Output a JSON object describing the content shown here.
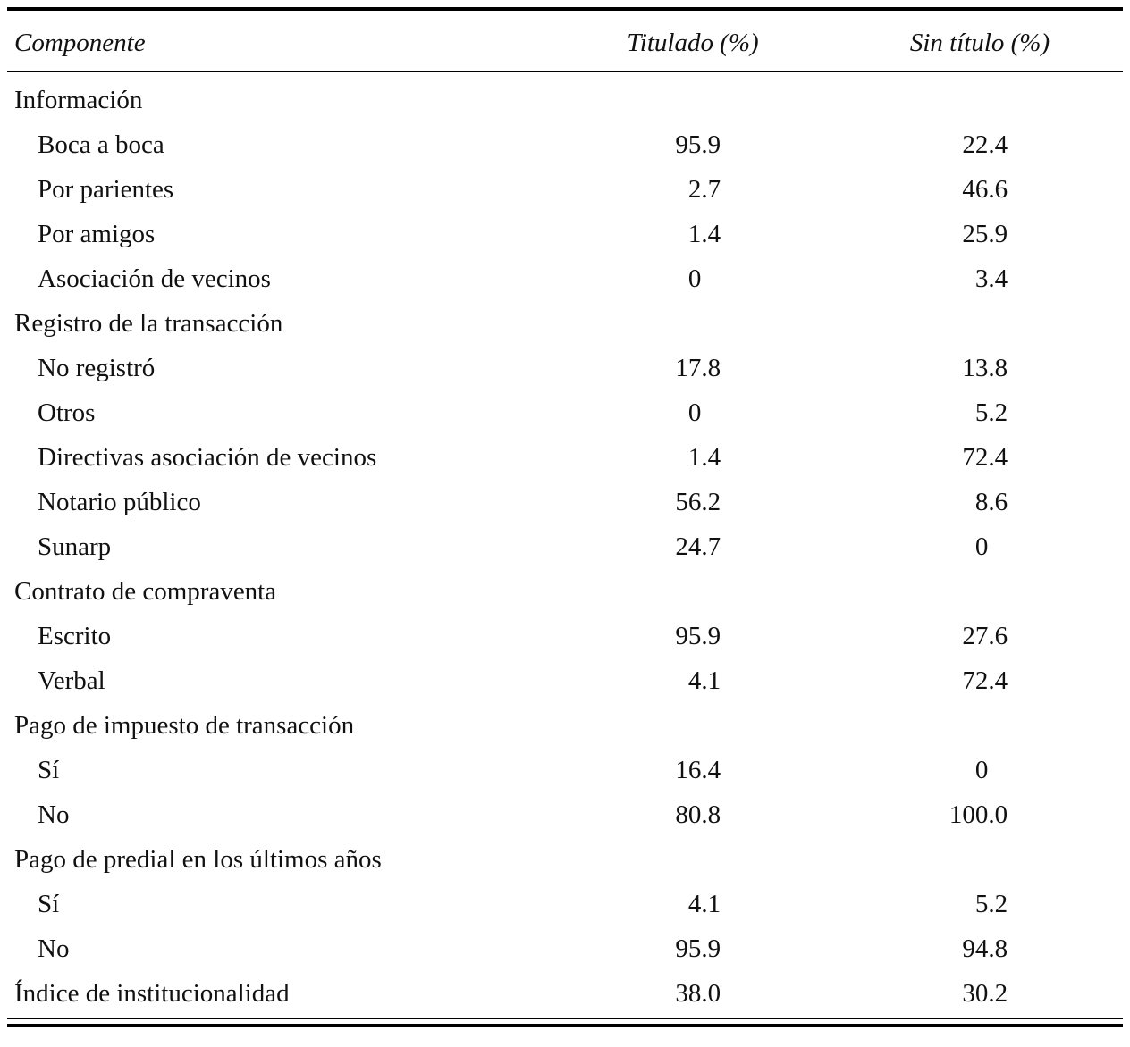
{
  "page": {
    "background": "#ffffff",
    "text_color": "#111111",
    "rule_color": "#000000"
  },
  "table": {
    "columns": [
      {
        "label": "Componente"
      },
      {
        "label": "Titulado (%)"
      },
      {
        "label": "Sin título (%)"
      }
    ],
    "rows": [
      {
        "indent": 0,
        "label": "Información",
        "values": [
          "",
          ""
        ]
      },
      {
        "indent": 1,
        "label": "Boca a boca",
        "values": [
          "95.9",
          "22.4"
        ]
      },
      {
        "indent": 1,
        "label": "Por parientes",
        "values": [
          "2.7",
          "46.6"
        ]
      },
      {
        "indent": 1,
        "label": "Por amigos",
        "values": [
          "1.4",
          "25.9"
        ]
      },
      {
        "indent": 1,
        "label": "Asociación de vecinos",
        "values": [
          "0",
          "3.4"
        ]
      },
      {
        "indent": 0,
        "label": "Registro de la transacción",
        "values": [
          "",
          ""
        ]
      },
      {
        "indent": 1,
        "label": "No registró",
        "values": [
          "17.8",
          "13.8"
        ]
      },
      {
        "indent": 1,
        "label": "Otros",
        "values": [
          "0",
          "5.2"
        ]
      },
      {
        "indent": 1,
        "label": "Directivas asociación de vecinos",
        "values": [
          "1.4",
          "72.4"
        ]
      },
      {
        "indent": 1,
        "label": "Notario público",
        "values": [
          "56.2",
          "8.6"
        ]
      },
      {
        "indent": 1,
        "label": "Sunarp",
        "values": [
          "24.7",
          "0"
        ]
      },
      {
        "indent": 0,
        "label": "Contrato de compraventa",
        "values": [
          "",
          ""
        ]
      },
      {
        "indent": 1,
        "label": "Escrito",
        "values": [
          "95.9",
          "27.6"
        ]
      },
      {
        "indent": 1,
        "label": "Verbal",
        "values": [
          "4.1",
          "72.4"
        ]
      },
      {
        "indent": 0,
        "label": "Pago de impuesto de transacción",
        "values": [
          "",
          ""
        ]
      },
      {
        "indent": 1,
        "label": "Sí",
        "values": [
          "16.4",
          "0"
        ]
      },
      {
        "indent": 1,
        "label": "No",
        "values": [
          "80.8",
          "100.0"
        ]
      },
      {
        "indent": 0,
        "label": "Pago de predial en los últimos años",
        "values": [
          "",
          ""
        ]
      },
      {
        "indent": 1,
        "label": "Sí",
        "values": [
          "4.1",
          "5.2"
        ]
      },
      {
        "indent": 1,
        "label": "No",
        "values": [
          "95.9",
          "94.8"
        ]
      },
      {
        "indent": 0,
        "label": "Índice de institucionalidad",
        "values": [
          "38.0",
          "30.2"
        ]
      }
    ]
  },
  "chart_data": {
    "type": "table",
    "title": "",
    "columns": [
      "Componente",
      "Titulado (%)",
      "Sin título (%)"
    ],
    "groups": [
      {
        "group": "Información",
        "rows": [
          [
            "Boca a boca",
            95.9,
            22.4
          ],
          [
            "Por parientes",
            2.7,
            46.6
          ],
          [
            "Por amigos",
            1.4,
            25.9
          ],
          [
            "Asociación de vecinos",
            0,
            3.4
          ]
        ]
      },
      {
        "group": "Registro de la transacción",
        "rows": [
          [
            "No registró",
            17.8,
            13.8
          ],
          [
            "Otros",
            0,
            5.2
          ],
          [
            "Directivas asociación de vecinos",
            1.4,
            72.4
          ],
          [
            "Notario público",
            56.2,
            8.6
          ],
          [
            "Sunarp",
            24.7,
            0
          ]
        ]
      },
      {
        "group": "Contrato de compraventa",
        "rows": [
          [
            "Escrito",
            95.9,
            27.6
          ],
          [
            "Verbal",
            4.1,
            72.4
          ]
        ]
      },
      {
        "group": "Pago de impuesto de transacción",
        "rows": [
          [
            "Sí",
            16.4,
            0
          ],
          [
            "No",
            80.8,
            100.0
          ]
        ]
      },
      {
        "group": "Pago de predial en los últimos años",
        "rows": [
          [
            "Sí",
            4.1,
            5.2
          ],
          [
            "No",
            95.9,
            94.8
          ]
        ]
      },
      {
        "group": "Índice de institucionalidad",
        "rows": [
          [
            "Índice de institucionalidad",
            38.0,
            30.2
          ]
        ]
      }
    ]
  }
}
